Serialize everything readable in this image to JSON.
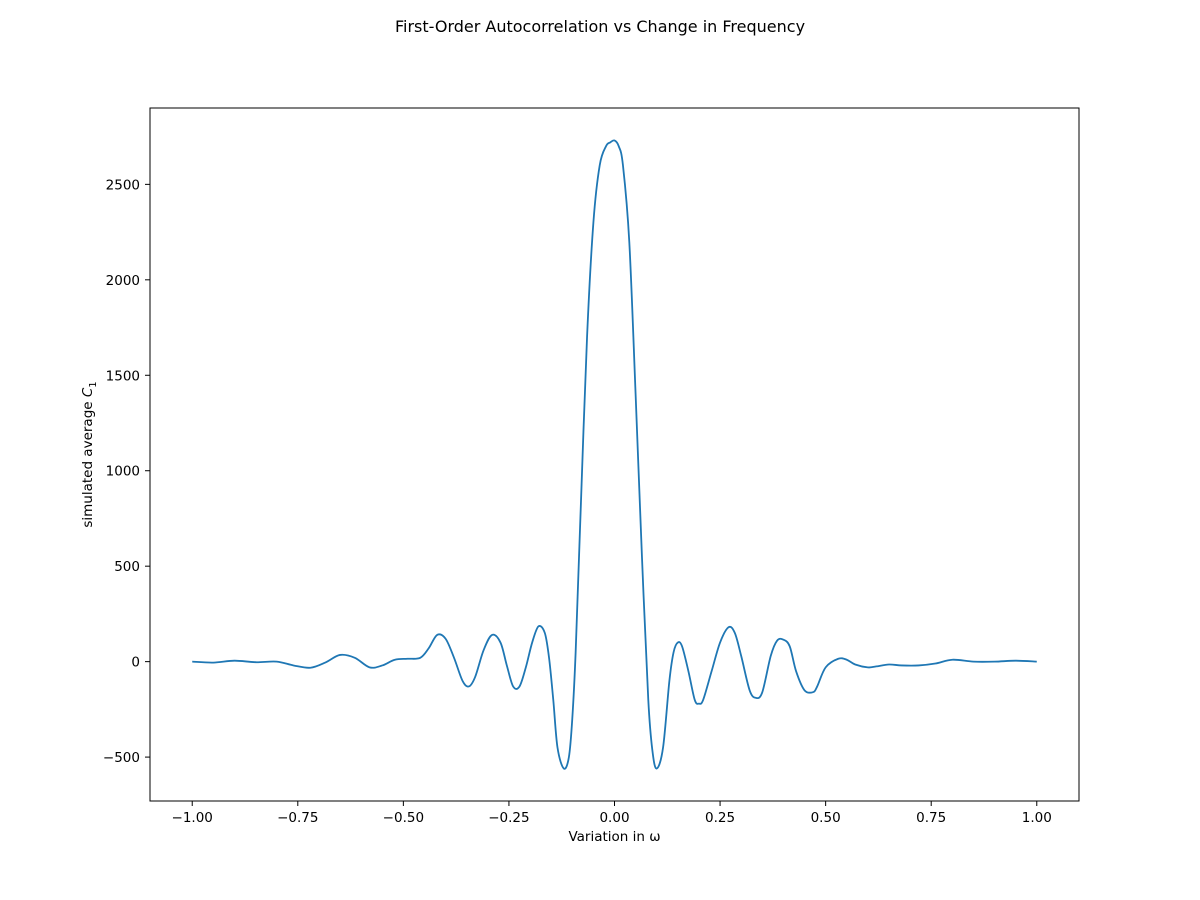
{
  "chart_data": {
    "type": "line",
    "title": "First-Order Autocorrelation vs Change in Frequency",
    "xlabel": "Variation in ω",
    "ylabel_main": "simulated average ",
    "ylabel_symbol": "C",
    "ylabel_subscript": "1",
    "xlim": [
      -1.1,
      1.1
    ],
    "ylim": [
      -730,
      2900
    ],
    "xticks": [
      -1.0,
      -0.75,
      -0.5,
      -0.25,
      0.0,
      0.25,
      0.5,
      0.75,
      1.0
    ],
    "xtick_labels": [
      "−1.00",
      "−0.75",
      "−0.50",
      "−0.25",
      "0.00",
      "0.25",
      "0.50",
      "0.75",
      "1.00"
    ],
    "yticks": [
      -500,
      0,
      500,
      1000,
      1500,
      2000,
      2500
    ],
    "ytick_labels": [
      "−500",
      "0",
      "500",
      "1000",
      "1500",
      "2000",
      "2500"
    ],
    "grid": false,
    "line_color": "#1f77b4",
    "series": [
      {
        "x": [
          -1.0,
          -0.95,
          -0.9,
          -0.85,
          -0.8,
          -0.76,
          -0.72,
          -0.685,
          -0.65,
          -0.615,
          -0.58,
          -0.55,
          -0.52,
          -0.49,
          -0.46,
          -0.44,
          -0.42,
          -0.4,
          -0.38,
          -0.36,
          -0.345,
          -0.33,
          -0.31,
          -0.29,
          -0.27,
          -0.255,
          -0.24,
          -0.225,
          -0.21,
          -0.195,
          -0.18,
          -0.165,
          -0.155,
          -0.145,
          -0.135,
          -0.12,
          -0.108,
          -0.1,
          -0.092,
          -0.08,
          -0.065,
          -0.05,
          -0.035,
          -0.02,
          -0.01,
          0.0,
          0.01,
          0.02,
          0.035,
          0.05,
          0.065,
          0.08,
          0.09,
          0.1,
          0.115,
          0.13,
          0.14,
          0.15,
          0.16,
          0.175,
          0.19,
          0.2,
          0.21,
          0.23,
          0.25,
          0.27,
          0.285,
          0.3,
          0.32,
          0.335,
          0.35,
          0.37,
          0.385,
          0.4,
          0.415,
          0.43,
          0.45,
          0.47,
          0.48,
          0.5,
          0.53,
          0.55,
          0.57,
          0.6,
          0.62,
          0.65,
          0.68,
          0.72,
          0.76,
          0.8,
          0.85,
          0.9,
          0.95,
          1.0
        ],
        "y": [
          0,
          -5,
          5,
          -3,
          0,
          -20,
          -32,
          -5,
          35,
          20,
          -30,
          -20,
          10,
          15,
          20,
          70,
          140,
          120,
          20,
          -100,
          -130,
          -80,
          60,
          140,
          100,
          -20,
          -130,
          -130,
          -30,
          100,
          185,
          150,
          20,
          -200,
          -450,
          -560,
          -500,
          -300,
          50,
          800,
          1700,
          2300,
          2600,
          2700,
          2720,
          2730,
          2700,
          2600,
          2200,
          1400,
          550,
          -200,
          -470,
          -560,
          -450,
          -100,
          50,
          100,
          80,
          -50,
          -200,
          -220,
          -200,
          -50,
          100,
          180,
          150,
          30,
          -150,
          -190,
          -160,
          30,
          110,
          115,
          80,
          -50,
          -150,
          -160,
          -130,
          -30,
          15,
          10,
          -15,
          -30,
          -25,
          -15,
          -20,
          -20,
          -10,
          10,
          0,
          0,
          5,
          0
        ]
      }
    ]
  }
}
